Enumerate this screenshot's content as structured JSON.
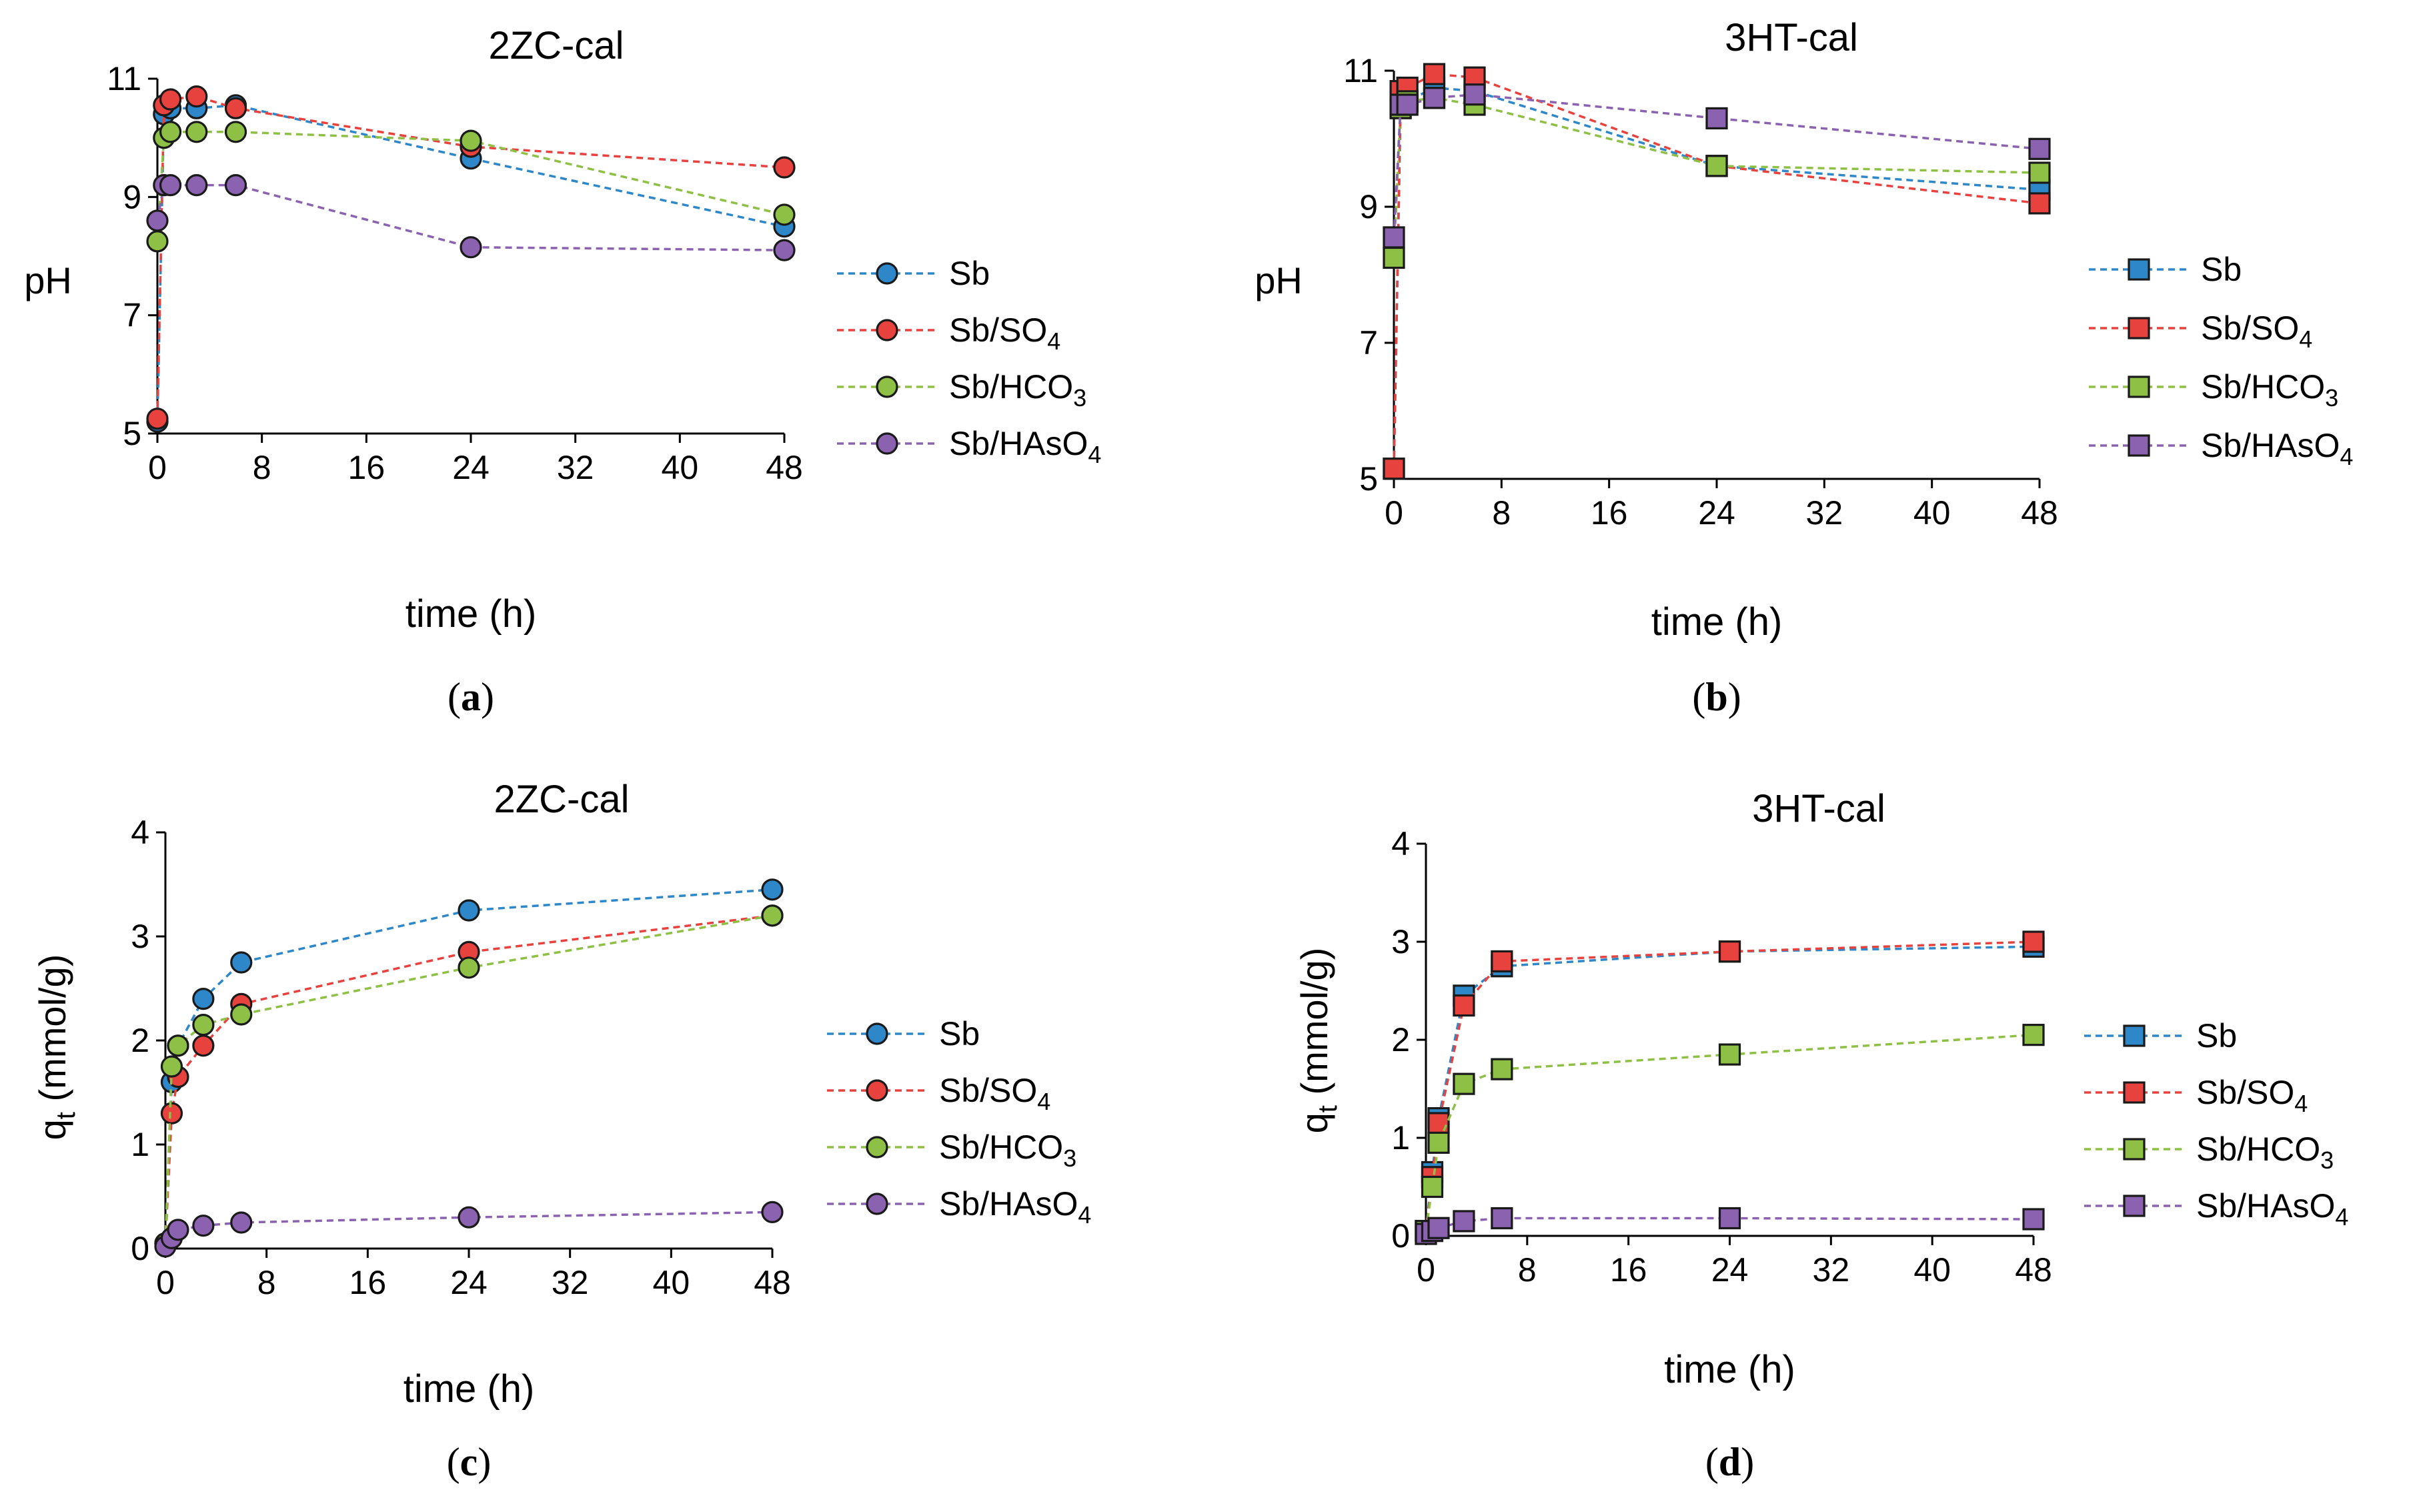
{
  "figure": {
    "panels": [
      {
        "letter": "a",
        "caption_open": "(",
        "caption_close": ")",
        "title": "2ZC-cal",
        "ylabel": "pH",
        "xlabel": "time (h)",
        "marker": "circle",
        "ylim": [
          5,
          11
        ],
        "yticks": [
          "5",
          "7",
          "9",
          "11"
        ],
        "xticks": [
          "0",
          "8",
          "16",
          "24",
          "32",
          "40",
          "48"
        ],
        "x": [
          0,
          0.5,
          1,
          3,
          6,
          24,
          48
        ],
        "series": [
          {
            "name": "Sb",
            "sub": "",
            "color": "#2E87C8",
            "values": [
              5.2,
              10.4,
              10.5,
              10.5,
              10.55,
              9.65,
              8.5
            ]
          },
          {
            "name": "Sb/SO",
            "sub": "4",
            "color": "#E8423F",
            "values": [
              5.25,
              10.55,
              10.65,
              10.7,
              10.5,
              9.85,
              9.5
            ]
          },
          {
            "name": "Sb/HCO",
            "sub": "3",
            "color": "#8DC045",
            "values": [
              8.25,
              10.0,
              10.1,
              10.1,
              10.1,
              9.95,
              8.7
            ]
          },
          {
            "name": "Sb/HAsO",
            "sub": "4",
            "color": "#8A62B0",
            "values": [
              8.6,
              9.2,
              9.2,
              9.2,
              9.2,
              8.15,
              8.1
            ]
          }
        ]
      },
      {
        "letter": "b",
        "caption_open": "(",
        "caption_close": ")",
        "title": "3HT-cal",
        "ylabel": "pH",
        "xlabel": "time (h)",
        "marker": "square",
        "ylim": [
          5,
          11
        ],
        "yticks": [
          "5",
          "7",
          "9",
          "11"
        ],
        "xticks": [
          "0",
          "8",
          "16",
          "24",
          "32",
          "40",
          "48"
        ],
        "x": [
          0,
          0.5,
          1,
          3,
          6,
          24,
          48
        ],
        "series": [
          {
            "name": "Sb",
            "sub": "",
            "color": "#2E87C8",
            "values": [
              5.15,
              10.45,
              10.55,
              10.75,
              10.7,
              9.6,
              9.25
            ]
          },
          {
            "name": "Sb/SO",
            "sub": "4",
            "color": "#E8423F",
            "values": [
              5.15,
              10.7,
              10.75,
              10.95,
              10.9,
              9.6,
              9.05
            ]
          },
          {
            "name": "Sb/HCO",
            "sub": "3",
            "color": "#8DC045",
            "values": [
              8.25,
              10.45,
              10.55,
              10.6,
              10.5,
              9.6,
              9.5
            ]
          },
          {
            "name": "Sb/HAsO",
            "sub": "4",
            "color": "#8A62B0",
            "values": [
              8.55,
              10.5,
              10.5,
              10.6,
              10.65,
              10.3,
              9.85
            ]
          }
        ]
      },
      {
        "letter": "c",
        "caption_open": "(",
        "caption_close": ")",
        "title": "2ZC-cal",
        "ylabel": "q",
        "ylabel_sub": "t",
        "ylabel_unit": " (mmol/g)",
        "xlabel": "time (h)",
        "marker": "circle",
        "ylim": [
          0,
          4
        ],
        "yticks": [
          "0",
          "1",
          "2",
          "3",
          "4"
        ],
        "xticks": [
          "0",
          "8",
          "16",
          "24",
          "32",
          "40",
          "48"
        ],
        "x": [
          0,
          0.5,
          1,
          3,
          6,
          24,
          48
        ],
        "series": [
          {
            "name": "Sb",
            "sub": "",
            "color": "#2E87C8",
            "values": [
              0.05,
              1.6,
              1.95,
              2.4,
              2.75,
              3.25,
              3.45
            ]
          },
          {
            "name": "Sb/SO",
            "sub": "4",
            "color": "#E8423F",
            "values": [
              0.05,
              1.3,
              1.65,
              1.95,
              2.35,
              2.85,
              3.2
            ]
          },
          {
            "name": "Sb/HCO",
            "sub": "3",
            "color": "#8DC045",
            "values": [
              0.05,
              1.75,
              1.95,
              2.15,
              2.25,
              2.7,
              3.2
            ]
          },
          {
            "name": "Sb/HAsO",
            "sub": "4",
            "color": "#8A62B0",
            "values": [
              0.02,
              0.1,
              0.18,
              0.22,
              0.25,
              0.3,
              0.35
            ]
          }
        ]
      },
      {
        "letter": "d",
        "caption_open": "(",
        "caption_close": ")",
        "title": "3HT-cal",
        "ylabel": "q",
        "ylabel_sub": "t",
        "ylabel_unit": " (mmol/g)",
        "xlabel": "time (h)",
        "marker": "square",
        "ylim": [
          0,
          4
        ],
        "yticks": [
          "0",
          "1",
          "2",
          "3",
          "4"
        ],
        "xticks": [
          "0",
          "8",
          "16",
          "24",
          "32",
          "40",
          "48"
        ],
        "x": [
          0,
          0.5,
          1,
          3,
          6,
          24,
          48
        ],
        "series": [
          {
            "name": "Sb",
            "sub": "",
            "color": "#2E87C8",
            "values": [
              0.05,
              0.65,
              1.2,
              2.45,
              2.75,
              2.9,
              2.95
            ]
          },
          {
            "name": "Sb/SO",
            "sub": "4",
            "color": "#E8423F",
            "values": [
              0.05,
              0.6,
              1.15,
              2.35,
              2.8,
              2.9,
              3.0
            ]
          },
          {
            "name": "Sb/HCO",
            "sub": "3",
            "color": "#8DC045",
            "values": [
              0.05,
              0.5,
              0.95,
              1.55,
              1.7,
              1.85,
              2.05
            ]
          },
          {
            "name": "Sb/HAsO",
            "sub": "4",
            "color": "#8A62B0",
            "values": [
              0.02,
              0.05,
              0.08,
              0.15,
              0.18,
              0.18,
              0.17
            ]
          }
        ]
      }
    ]
  },
  "chart_data": [
    {
      "type": "line",
      "title": "2ZC-cal",
      "xlabel": "time (h)",
      "ylabel": "pH",
      "ylim": [
        5,
        11
      ],
      "xlim": [
        0,
        48
      ],
      "x": [
        0,
        0.5,
        1,
        3,
        6,
        24,
        48
      ],
      "series": [
        {
          "name": "Sb",
          "values": [
            5.2,
            10.4,
            10.5,
            10.5,
            10.55,
            9.65,
            8.5
          ]
        },
        {
          "name": "Sb/SO4",
          "values": [
            5.25,
            10.55,
            10.65,
            10.7,
            10.5,
            9.85,
            9.5
          ]
        },
        {
          "name": "Sb/HCO3",
          "values": [
            8.25,
            10.0,
            10.1,
            10.1,
            10.1,
            9.95,
            8.7
          ]
        },
        {
          "name": "Sb/HAsO4",
          "values": [
            8.6,
            9.2,
            9.2,
            9.2,
            9.2,
            8.15,
            8.1
          ]
        }
      ]
    },
    {
      "type": "line",
      "title": "3HT-cal",
      "xlabel": "time (h)",
      "ylabel": "pH",
      "ylim": [
        5,
        11
      ],
      "xlim": [
        0,
        48
      ],
      "x": [
        0,
        0.5,
        1,
        3,
        6,
        24,
        48
      ],
      "series": [
        {
          "name": "Sb",
          "values": [
            5.15,
            10.45,
            10.55,
            10.75,
            10.7,
            9.6,
            9.25
          ]
        },
        {
          "name": "Sb/SO4",
          "values": [
            5.15,
            10.7,
            10.75,
            10.95,
            10.9,
            9.6,
            9.05
          ]
        },
        {
          "name": "Sb/HCO3",
          "values": [
            8.25,
            10.45,
            10.55,
            10.6,
            10.5,
            9.6,
            9.5
          ]
        },
        {
          "name": "Sb/HAsO4",
          "values": [
            8.55,
            10.5,
            10.5,
            10.6,
            10.65,
            10.3,
            9.85
          ]
        }
      ]
    },
    {
      "type": "line",
      "title": "2ZC-cal",
      "xlabel": "time (h)",
      "ylabel": "qt (mmol/g)",
      "ylim": [
        0,
        4
      ],
      "xlim": [
        0,
        48
      ],
      "x": [
        0,
        0.5,
        1,
        3,
        6,
        24,
        48
      ],
      "series": [
        {
          "name": "Sb",
          "values": [
            0.05,
            1.6,
            1.95,
            2.4,
            2.75,
            3.25,
            3.45
          ]
        },
        {
          "name": "Sb/SO4",
          "values": [
            0.05,
            1.3,
            1.65,
            1.95,
            2.35,
            2.85,
            3.2
          ]
        },
        {
          "name": "Sb/HCO3",
          "values": [
            0.05,
            1.75,
            1.95,
            2.15,
            2.25,
            2.7,
            3.2
          ]
        },
        {
          "name": "Sb/HAsO4",
          "values": [
            0.02,
            0.1,
            0.18,
            0.22,
            0.25,
            0.3,
            0.35
          ]
        }
      ]
    },
    {
      "type": "line",
      "title": "3HT-cal",
      "xlabel": "time (h)",
      "ylabel": "qt (mmol/g)",
      "ylim": [
        0,
        4
      ],
      "xlim": [
        0,
        48
      ],
      "x": [
        0,
        0.5,
        1,
        3,
        6,
        24,
        48
      ],
      "series": [
        {
          "name": "Sb",
          "values": [
            0.05,
            0.65,
            1.2,
            2.45,
            2.75,
            2.9,
            2.95
          ]
        },
        {
          "name": "Sb/SO4",
          "values": [
            0.05,
            0.6,
            1.15,
            2.35,
            2.8,
            2.9,
            3.0
          ]
        },
        {
          "name": "Sb/HCO3",
          "values": [
            0.05,
            0.5,
            0.95,
            1.55,
            1.7,
            1.85,
            2.05
          ]
        },
        {
          "name": "Sb/HAsO4",
          "values": [
            0.02,
            0.05,
            0.08,
            0.15,
            0.18,
            0.18,
            0.17
          ]
        }
      ]
    }
  ]
}
